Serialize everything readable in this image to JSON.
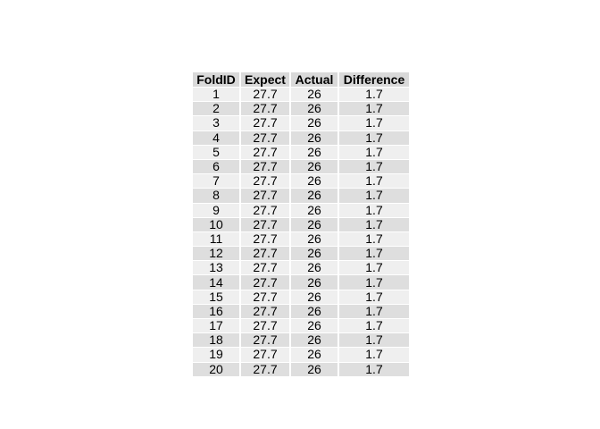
{
  "chart_data": {
    "type": "table",
    "columns": [
      "FoldID",
      "Expect",
      "Actual",
      "Difference"
    ],
    "rows": [
      [
        "1",
        "27.7",
        "26",
        "1.7"
      ],
      [
        "2",
        "27.7",
        "26",
        "1.7"
      ],
      [
        "3",
        "27.7",
        "26",
        "1.7"
      ],
      [
        "4",
        "27.7",
        "26",
        "1.7"
      ],
      [
        "5",
        "27.7",
        "26",
        "1.7"
      ],
      [
        "6",
        "27.7",
        "26",
        "1.7"
      ],
      [
        "7",
        "27.7",
        "26",
        "1.7"
      ],
      [
        "8",
        "27.7",
        "26",
        "1.7"
      ],
      [
        "9",
        "27.7",
        "26",
        "1.7"
      ],
      [
        "10",
        "27.7",
        "26",
        "1.7"
      ],
      [
        "11",
        "27.7",
        "26",
        "1.7"
      ],
      [
        "12",
        "27.7",
        "26",
        "1.7"
      ],
      [
        "13",
        "27.7",
        "26",
        "1.7"
      ],
      [
        "14",
        "27.7",
        "26",
        "1.7"
      ],
      [
        "15",
        "27.7",
        "26",
        "1.7"
      ],
      [
        "16",
        "27.7",
        "26",
        "1.7"
      ],
      [
        "17",
        "27.7",
        "26",
        "1.7"
      ],
      [
        "18",
        "27.7",
        "26",
        "1.7"
      ],
      [
        "19",
        "27.7",
        "26",
        "1.7"
      ],
      [
        "20",
        "27.7",
        "26",
        "1.7"
      ]
    ],
    "colors": {
      "header_fill": "#d9d9d9",
      "row_fill_odd": "#efefef",
      "row_fill_even": "#dedede",
      "text": "#000000"
    }
  }
}
